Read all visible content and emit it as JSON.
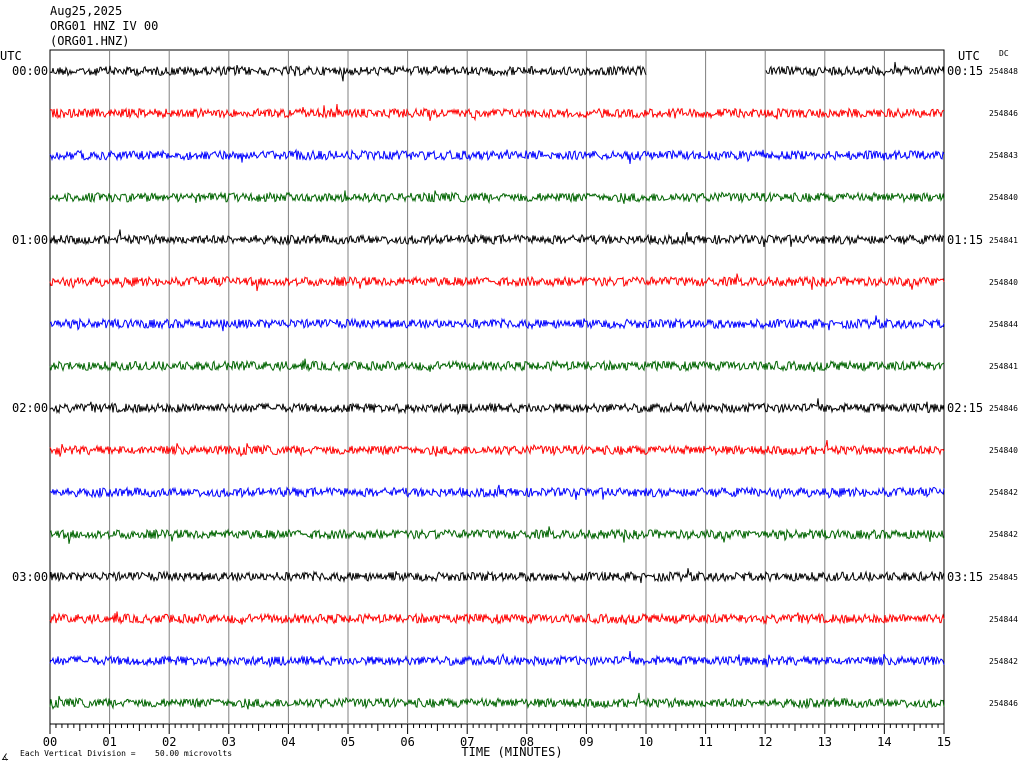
{
  "header": {
    "date": "Aug25,2025",
    "station": "ORG01 HNZ IV 00",
    "channel": "(ORG01.HNZ)"
  },
  "left_axis": {
    "title": "UTC"
  },
  "right_axis": {
    "title": "UTC",
    "dc_title": "DC"
  },
  "footer": {
    "scale_note": "Each Vertical Division =",
    "scale_value": "50.00 microvolts",
    "logo_mark": "∡"
  },
  "colors": {
    "black": "#000000",
    "red": "#ff0000",
    "blue": "#0000ff",
    "green": "#006400",
    "grid": "#808080"
  },
  "chart_data": {
    "type": "line",
    "xlabel": "TIME (MINUTES)",
    "xlim": [
      0,
      15
    ],
    "x_ticks": [
      "00",
      "01",
      "02",
      "03",
      "04",
      "05",
      "06",
      "07",
      "08",
      "09",
      "10",
      "11",
      "12",
      "13",
      "14",
      "15"
    ],
    "trace_colors": [
      "black",
      "red",
      "blue",
      "green"
    ],
    "traces": [
      {
        "left_label": "00:00",
        "right_label": "00:15",
        "dc": "254848",
        "gap": [
          10.0,
          12.0
        ]
      },
      {
        "left_label": "",
        "right_label": "",
        "dc": "254846"
      },
      {
        "left_label": "",
        "right_label": "",
        "dc": "254843"
      },
      {
        "left_label": "",
        "right_label": "",
        "dc": "254840"
      },
      {
        "left_label": "01:00",
        "right_label": "01:15",
        "dc": "254841"
      },
      {
        "left_label": "",
        "right_label": "",
        "dc": "254840"
      },
      {
        "left_label": "",
        "right_label": "",
        "dc": "254844"
      },
      {
        "left_label": "",
        "right_label": "",
        "dc": "254841"
      },
      {
        "left_label": "02:00",
        "right_label": "02:15",
        "dc": "254846"
      },
      {
        "left_label": "",
        "right_label": "",
        "dc": "254840"
      },
      {
        "left_label": "",
        "right_label": "",
        "dc": "254842"
      },
      {
        "left_label": "",
        "right_label": "",
        "dc": "254842"
      },
      {
        "left_label": "03:00",
        "right_label": "03:15",
        "dc": "254845"
      },
      {
        "left_label": "",
        "right_label": "",
        "dc": "254844"
      },
      {
        "left_label": "",
        "right_label": "",
        "dc": "254842"
      },
      {
        "left_label": "",
        "right_label": "",
        "dc": "254846"
      }
    ]
  }
}
